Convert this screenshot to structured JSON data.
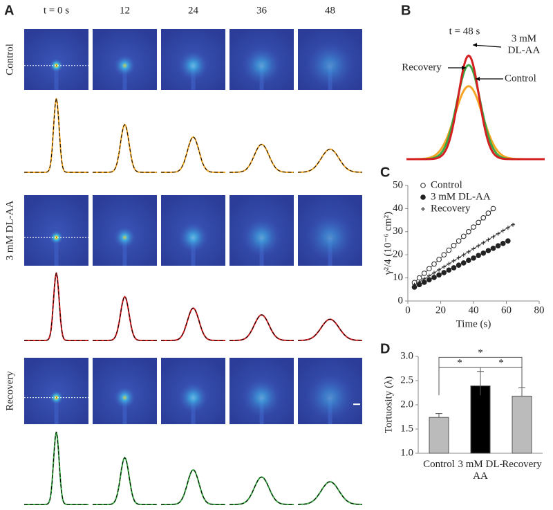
{
  "panel_a": {
    "label": "A",
    "time_labels": [
      "t = 0 s",
      "12",
      "24",
      "36",
      "48"
    ],
    "row_labels": [
      "Control",
      "3 mM DL-AA",
      "Recovery"
    ]
  },
  "panel_b": {
    "label": "B",
    "title": "t = 48 s",
    "curve_labels": [
      "3 mM DL-AA",
      "Recovery",
      "Control"
    ]
  },
  "chart_data": [
    {
      "type": "scatter",
      "panel_label": "C",
      "xlabel": "Time (s)",
      "ylabel": "γ²/4 (10⁻⁶ cm²)",
      "xlim": [
        0,
        80
      ],
      "ylim": [
        0,
        50
      ],
      "xticks": [
        0,
        20,
        40,
        60,
        80
      ],
      "yticks": [
        0,
        10,
        20,
        30,
        40,
        50
      ],
      "series": [
        {
          "name": "Control",
          "color": "#222222",
          "marker": "open-circle",
          "x": [
            4,
            7,
            10,
            13,
            16,
            19,
            22,
            25,
            28,
            31,
            34,
            37,
            40,
            43,
            46,
            49,
            52
          ],
          "values": [
            8,
            10,
            12,
            14,
            16,
            18,
            20,
            22,
            24,
            26,
            28,
            30,
            32,
            34,
            36,
            38,
            40
          ]
        },
        {
          "name": "3 mM DL-AA",
          "color": "#222222",
          "marker": "filled-circle",
          "x": [
            4,
            7,
            10,
            13,
            16,
            19,
            22,
            25,
            28,
            31,
            34,
            37,
            40,
            43,
            46,
            49,
            52,
            55,
            58,
            61
          ],
          "values": [
            6,
            7.1,
            8.1,
            9.2,
            10.2,
            11.3,
            12.3,
            13.4,
            14.4,
            15.5,
            16.5,
            17.6,
            18.6,
            19.7,
            20.7,
            21.8,
            22.8,
            23.9,
            24.9,
            26
          ]
        },
        {
          "name": "Recovery",
          "color": "#222222",
          "marker": "plus",
          "x": [
            4,
            7,
            10,
            13,
            16,
            19,
            22,
            25,
            28,
            31,
            34,
            37,
            40,
            43,
            46,
            49,
            52,
            55,
            58,
            61,
            64
          ],
          "values": [
            7,
            8.3,
            9.6,
            10.9,
            12.2,
            13.5,
            14.8,
            16.1,
            17.4,
            18.7,
            20,
            21.3,
            22.6,
            23.9,
            25.2,
            26.5,
            27.8,
            29.1,
            30.4,
            31.7,
            33
          ]
        }
      ]
    },
    {
      "type": "bar",
      "panel_label": "D",
      "ylabel": "Tortuosity (λ)",
      "categories": [
        "Control",
        "3 mM DL-AA",
        "Recovery"
      ],
      "values": [
        1.74,
        2.39,
        2.18
      ],
      "errors": [
        0.08,
        0.3,
        0.17
      ],
      "colors": [
        "#bbbbbb",
        "#000000",
        "#bbbbbb"
      ],
      "ylim": [
        1,
        3
      ],
      "yticks": [
        {
          "value": 1,
          "label": "1.0"
        },
        {
          "value": 1.5,
          "label": "1.5"
        },
        {
          "value": 2,
          "label": "2.0"
        },
        {
          "value": 2.5,
          "label": "2.5"
        },
        {
          "value": 3,
          "label": "3.0"
        }
      ],
      "annotations": [
        "*",
        "*",
        "*"
      ]
    }
  ]
}
